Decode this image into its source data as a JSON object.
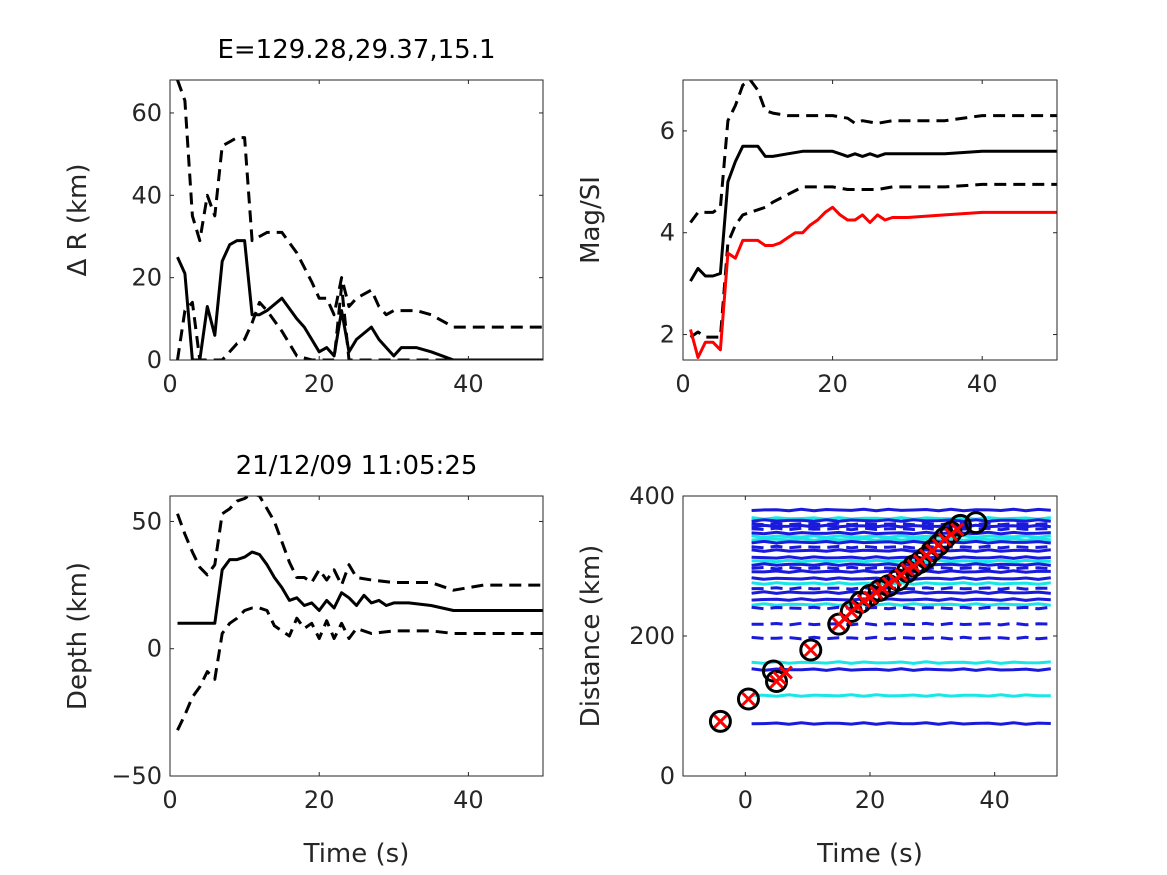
{
  "chart_data": [
    {
      "type": "line",
      "title": "E=129.28,29.37,15.1",
      "xlabel": "",
      "ylabel": "Δ R (km)",
      "xlim": [
        0,
        50
      ],
      "ylim": [
        0,
        68
      ],
      "xticks": [
        0,
        20,
        40
      ],
      "yticks": [
        0,
        20,
        40,
        60
      ],
      "series": [
        {
          "style": "solid",
          "color": "#000000",
          "x": [
            1,
            2,
            3,
            4,
            5,
            6,
            7,
            8,
            9,
            10,
            11,
            12,
            13,
            15,
            17,
            18,
            19,
            20,
            21,
            22,
            23,
            24,
            25,
            27,
            28,
            29,
            30,
            31,
            33,
            35,
            38,
            42,
            50
          ],
          "y": [
            25,
            21,
            0,
            0,
            13,
            6,
            24,
            28,
            29,
            29,
            11,
            11,
            12,
            15,
            10,
            8,
            5,
            2,
            3,
            1,
            12,
            2,
            5,
            8,
            5,
            3,
            1,
            3,
            3,
            2,
            0,
            0,
            0
          ]
        },
        {
          "style": "dashed",
          "color": "#000000",
          "x": [
            1,
            2,
            3,
            4,
            5,
            6,
            7,
            8,
            9,
            10,
            11,
            12,
            13,
            15,
            17,
            19,
            20,
            21,
            22,
            23,
            24,
            25,
            27,
            28,
            29,
            30,
            33,
            35,
            38,
            42,
            50
          ],
          "y": [
            68,
            63,
            35,
            29,
            40,
            35,
            52,
            53,
            54,
            54,
            29,
            30,
            31,
            31,
            26,
            19,
            15,
            15,
            11,
            20,
            13,
            15,
            17,
            13,
            11,
            12,
            12,
            11,
            8,
            8,
            8
          ]
        },
        {
          "style": "dashed",
          "color": "#000000",
          "x": [
            1,
            2,
            3,
            4,
            5,
            6,
            7,
            8,
            9,
            10,
            11,
            12,
            13,
            15,
            17,
            19,
            20,
            21,
            22,
            23,
            24,
            25,
            30,
            35,
            50
          ],
          "y": [
            0,
            12,
            14,
            0,
            0,
            0,
            0,
            2,
            4,
            5,
            9,
            14,
            12,
            7,
            1,
            0,
            0,
            0,
            0,
            18,
            0,
            0,
            0,
            0,
            0
          ]
        }
      ]
    },
    {
      "type": "line",
      "title": "",
      "xlabel": "",
      "ylabel": "Mag/SI",
      "xlim": [
        0,
        50
      ],
      "ylim": [
        1.5,
        7
      ],
      "xticks": [
        0,
        20,
        40
      ],
      "yticks": [
        2,
        4,
        6
      ],
      "series": [
        {
          "style": "solid",
          "color": "#000000",
          "x": [
            1,
            2,
            3,
            4,
            5,
            6,
            7,
            8,
            9,
            10,
            11,
            12,
            14,
            16,
            18,
            20,
            21,
            22,
            23,
            24,
            25,
            26,
            27,
            28,
            30,
            35,
            40,
            50
          ],
          "y": [
            3.05,
            3.3,
            3.15,
            3.15,
            3.2,
            5.0,
            5.4,
            5.7,
            5.7,
            5.7,
            5.5,
            5.5,
            5.55,
            5.6,
            5.6,
            5.6,
            5.55,
            5.5,
            5.55,
            5.5,
            5.55,
            5.5,
            5.55,
            5.55,
            5.55,
            5.55,
            5.6,
            5.6
          ]
        },
        {
          "style": "dashed",
          "color": "#000000",
          "x": [
            1,
            2,
            3,
            4,
            5,
            6,
            7,
            8,
            9,
            10,
            11,
            12,
            14,
            16,
            18,
            20,
            22,
            23,
            24,
            26,
            28,
            30,
            35,
            40,
            50
          ],
          "y": [
            4.2,
            4.4,
            4.4,
            4.4,
            4.5,
            6.2,
            6.5,
            6.9,
            7.0,
            6.8,
            6.4,
            6.35,
            6.3,
            6.3,
            6.3,
            6.3,
            6.25,
            6.15,
            6.2,
            6.15,
            6.2,
            6.2,
            6.2,
            6.3,
            6.3
          ]
        },
        {
          "style": "dashed",
          "color": "#000000",
          "x": [
            1,
            2,
            3,
            4,
            5,
            6,
            7,
            8,
            9,
            10,
            11,
            12,
            14,
            16,
            18,
            20,
            22,
            24,
            26,
            28,
            30,
            35,
            40,
            50
          ],
          "y": [
            1.95,
            2.05,
            1.95,
            1.95,
            1.95,
            3.8,
            4.15,
            4.35,
            4.4,
            4.45,
            4.5,
            4.6,
            4.75,
            4.9,
            4.9,
            4.9,
            4.85,
            4.85,
            4.85,
            4.9,
            4.9,
            4.9,
            4.95,
            4.95
          ]
        },
        {
          "style": "solid",
          "color": "#ff0000",
          "x": [
            1,
            2,
            3,
            4,
            5,
            6,
            7,
            8,
            9,
            10,
            11,
            12,
            13,
            14,
            15,
            16,
            17,
            18,
            19,
            20,
            21,
            22,
            23,
            24,
            25,
            26,
            27,
            28,
            30,
            35,
            40,
            50
          ],
          "y": [
            2.1,
            1.55,
            1.85,
            1.85,
            1.7,
            3.6,
            3.5,
            3.85,
            3.85,
            3.85,
            3.75,
            3.75,
            3.8,
            3.9,
            4.0,
            4.0,
            4.15,
            4.25,
            4.4,
            4.5,
            4.35,
            4.25,
            4.25,
            4.35,
            4.2,
            4.35,
            4.25,
            4.3,
            4.3,
            4.35,
            4.4,
            4.4
          ]
        }
      ]
    },
    {
      "type": "line",
      "title": "21/12/09 11:05:25",
      "xlabel": "Time (s)",
      "ylabel": "Depth (km)",
      "xlim": [
        0,
        50
      ],
      "ylim": [
        -50,
        60
      ],
      "xticks": [
        0,
        20,
        40
      ],
      "yticks": [
        -50,
        0,
        50
      ],
      "series": [
        {
          "style": "solid",
          "color": "#000000",
          "x": [
            1,
            2,
            3,
            4,
            5,
            6,
            7,
            8,
            9,
            10,
            11,
            12,
            13,
            14,
            15,
            16,
            17,
            18,
            19,
            20,
            21,
            22,
            23,
            24,
            25,
            26,
            27,
            28,
            29,
            30,
            32,
            35,
            38,
            42,
            50
          ],
          "y": [
            10,
            10,
            10,
            10,
            10,
            10,
            31,
            35,
            35,
            36,
            38,
            37,
            33,
            28,
            24,
            19,
            20,
            17,
            18,
            15,
            19,
            16,
            22,
            20,
            17,
            21,
            18,
            19,
            17,
            18,
            18,
            17,
            15,
            15,
            15
          ]
        },
        {
          "style": "dashed",
          "color": "#000000",
          "x": [
            1,
            2,
            3,
            4,
            5,
            6,
            7,
            8,
            9,
            10,
            11,
            12,
            13,
            14,
            15,
            16,
            17,
            18,
            19,
            20,
            21,
            22,
            23,
            24,
            25,
            27,
            30,
            35,
            38,
            42,
            50
          ],
          "y": [
            53,
            45,
            38,
            32,
            29,
            33,
            53,
            55,
            58,
            59,
            61,
            60,
            55,
            50,
            42,
            34,
            28,
            28,
            26,
            31,
            27,
            31,
            25,
            33,
            28,
            27,
            26,
            26,
            23,
            25,
            25
          ]
        },
        {
          "style": "dashed",
          "color": "#000000",
          "x": [
            1,
            2,
            3,
            4,
            5,
            6,
            7,
            8,
            9,
            10,
            11,
            12,
            13,
            14,
            15,
            16,
            17,
            18,
            19,
            20,
            21,
            22,
            23,
            24,
            25,
            27,
            30,
            35,
            38,
            42,
            50
          ],
          "y": [
            -32,
            -26,
            -19,
            -15,
            -9,
            -12,
            6,
            10,
            12,
            15,
            16,
            16,
            15,
            9,
            7,
            5,
            12,
            8,
            10,
            4,
            11,
            4,
            10,
            4,
            8,
            6,
            7,
            7,
            6,
            6,
            6
          ]
        }
      ]
    },
    {
      "type": "scatter",
      "title": "",
      "xlabel": "Time (s)",
      "ylabel": "Distance (km)",
      "xlim": [
        -10,
        50
      ],
      "ylim": [
        0,
        400
      ],
      "xticks": [
        0,
        20,
        40
      ],
      "yticks": [
        0,
        200,
        400
      ],
      "flat_lines": {
        "x_start": 1,
        "x_end": 50,
        "blue_solid": [
          75,
          152,
          252,
          262,
          282,
          292,
          302,
          312,
          322,
          334,
          347,
          357,
          365,
          380
        ],
        "blue_dashed": [
          197,
          217,
          240,
          268,
          297,
          327,
          353,
          360
        ],
        "cyan": [
          115,
          162,
          245,
          275,
          307,
          338,
          342,
          368
        ]
      },
      "circles": {
        "x": [
          -4,
          0.5,
          4.5,
          5,
          10.5,
          15,
          17,
          18.5,
          20,
          21.5,
          23,
          24.5,
          26,
          27,
          28,
          29,
          30,
          31,
          32,
          33,
          34.5,
          37
        ],
        "y": [
          78,
          110,
          150,
          135,
          180,
          217,
          235,
          248,
          258,
          265,
          272,
          280,
          292,
          300,
          305,
          312,
          322,
          330,
          340,
          348,
          358,
          362
        ]
      },
      "crosses": {
        "x": [
          -4,
          0.5,
          5,
          5.5,
          6.5,
          10.5,
          15,
          16,
          17,
          18,
          19,
          20,
          21,
          22,
          23,
          24,
          25,
          26,
          27,
          28,
          29,
          30,
          31,
          32,
          33,
          34
        ],
        "y": [
          78,
          110,
          135,
          140,
          148,
          180,
          217,
          225,
          235,
          242,
          250,
          255,
          262,
          268,
          275,
          280,
          287,
          295,
          300,
          307,
          315,
          322,
          330,
          338,
          345,
          352
        ]
      }
    }
  ]
}
